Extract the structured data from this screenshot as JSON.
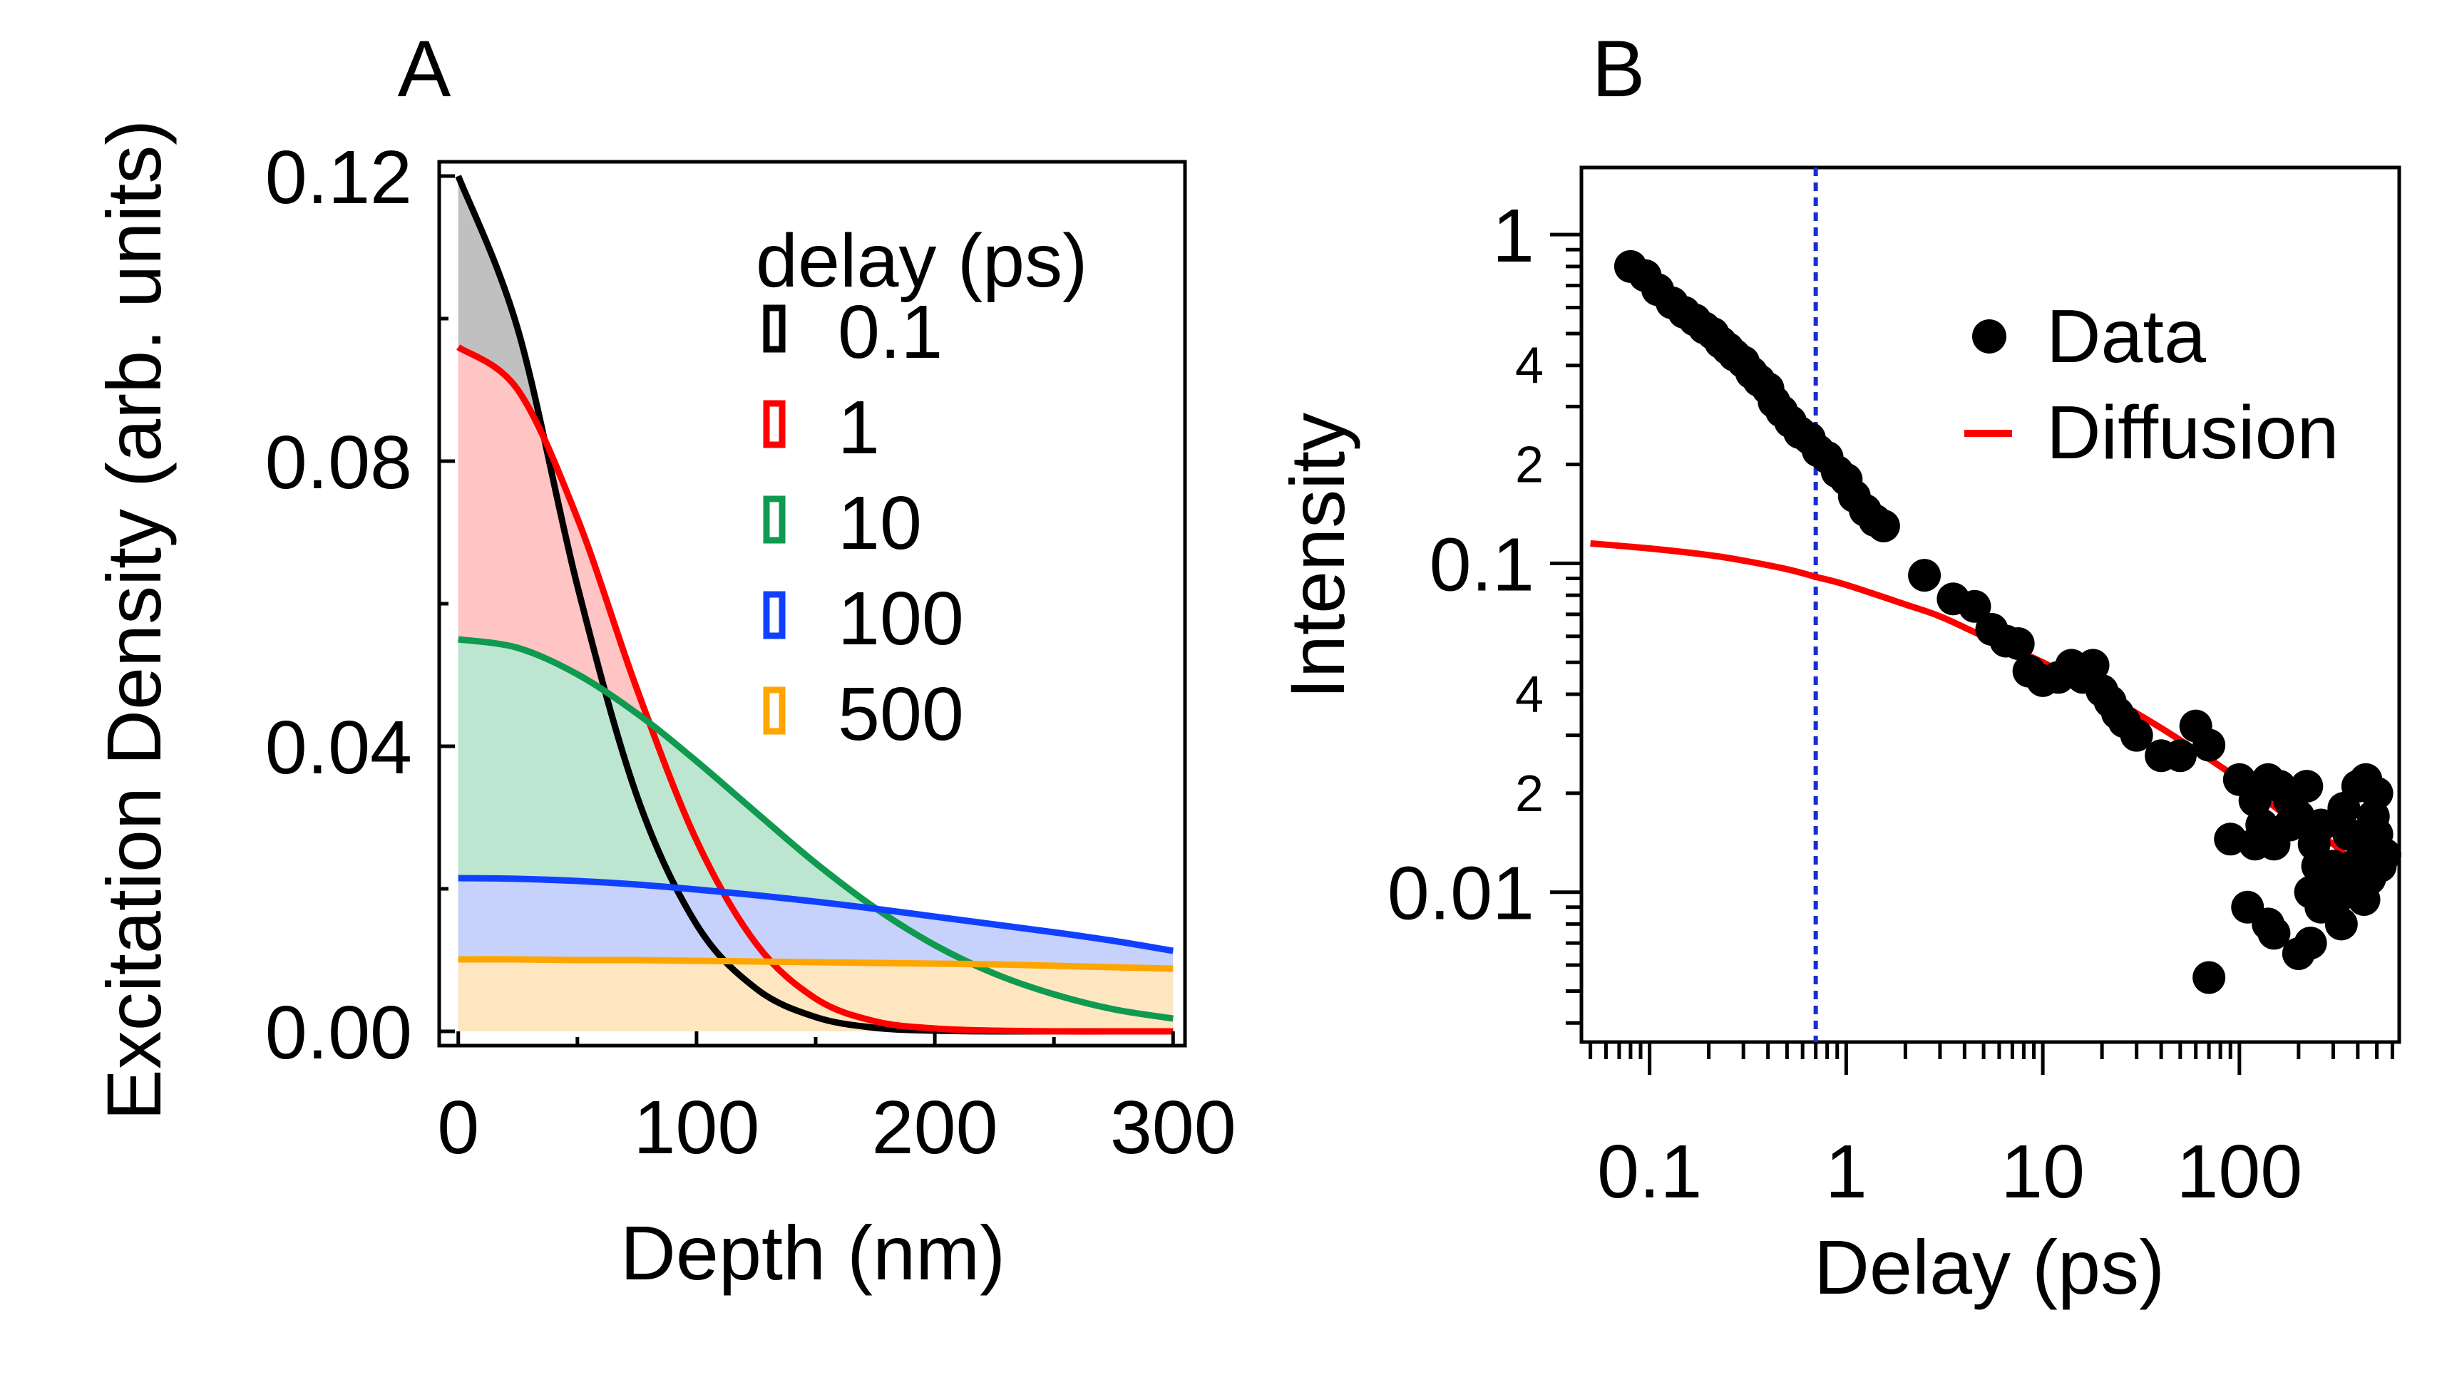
{
  "panels": {
    "a": {
      "label": "A"
    },
    "b": {
      "label": "B"
    }
  },
  "chart_data": [
    {
      "type": "area",
      "panel": "A",
      "xlabel": "Depth (nm)",
      "ylabel": "Excitation Density (arb. units)",
      "xlim": [
        -8,
        305
      ],
      "ylim": [
        -0.002,
        0.122
      ],
      "xticks": [
        0,
        100,
        200,
        300
      ],
      "xtick_labels": [
        "0",
        "100",
        "200",
        "300"
      ],
      "yticks": [
        0.0,
        0.04,
        0.08,
        0.12
      ],
      "ytick_labels": [
        "0.00",
        "0.04",
        "0.08",
        "0.12"
      ],
      "legend": {
        "title": "delay (ps)",
        "placement": "top-right"
      },
      "depth": [
        0,
        25,
        50,
        75,
        100,
        125,
        150,
        175,
        200,
        225,
        250,
        275,
        300
      ],
      "series": [
        {
          "name": "0.1",
          "color": "#000000",
          "fill": "#c0c0c0",
          "values": [
            0.12,
            0.0985,
            0.0625,
            0.033,
            0.015,
            0.006,
            0.002,
            0.0005,
            0.0001,
            0,
            0,
            0,
            0
          ]
        },
        {
          "name": "1",
          "color": "#ff0000",
          "fill": "#ffc4c4",
          "values": [
            0.096,
            0.09,
            0.072,
            0.048,
            0.0268,
            0.0123,
            0.0046,
            0.0014,
            0.0004,
            0.0001,
            0,
            0,
            0
          ]
        },
        {
          "name": "10",
          "color": "#109a50",
          "fill": "#bde6d1",
          "values": [
            0.055,
            0.0538,
            0.0501,
            0.0446,
            0.0379,
            0.0307,
            0.0236,
            0.0173,
            0.0121,
            0.0081,
            0.0052,
            0.0031,
            0.0018
          ]
        },
        {
          "name": "100",
          "color": "#1040ff",
          "fill": "#c6d2fb",
          "values": [
            0.0215,
            0.0214,
            0.0211,
            0.0206,
            0.0199,
            0.0191,
            0.0182,
            0.0172,
            0.0161,
            0.015,
            0.0139,
            0.0127,
            0.0113
          ]
        },
        {
          "name": "500",
          "color": "#ffa500",
          "fill": "#fde6c0",
          "values": [
            0.0101,
            0.0101,
            0.01,
            0.01,
            0.0099,
            0.0098,
            0.0097,
            0.0096,
            0.0095,
            0.0094,
            0.0092,
            0.009,
            0.0088
          ]
        }
      ]
    },
    {
      "type": "scatter",
      "panel": "B",
      "xscale": "log",
      "yscale": "log",
      "xlabel": "Delay (ps)",
      "ylabel": "Intensity",
      "xlim": [
        0.045,
        650
      ],
      "ylim": [
        0.0035,
        1.6
      ],
      "xticks": [
        0.1,
        1,
        10,
        100
      ],
      "xtick_labels": [
        "0.1",
        "1",
        "10",
        "100"
      ],
      "yticks": [
        0.01,
        0.1,
        1
      ],
      "ytick_labels": [
        "0.01",
        "0.1",
        "1"
      ],
      "yminor_labels": [
        {
          "value": 0.02,
          "label": "2"
        },
        {
          "value": 0.04,
          "label": "4"
        },
        {
          "value": 0.2,
          "label": "2"
        },
        {
          "value": 0.4,
          "label": "4"
        }
      ],
      "vline": {
        "x": 0.7,
        "color": "#1a2ecc",
        "style": "dotted"
      },
      "legend": {
        "placement": "top-right",
        "entries": [
          "Data",
          "Diffusion"
        ]
      },
      "series": [
        {
          "name": "Data",
          "kind": "markers",
          "color": "#000000",
          "points": [
            [
              0.08,
              0.8
            ],
            [
              0.095,
              0.75
            ],
            [
              0.11,
              0.68
            ],
            [
              0.13,
              0.62
            ],
            [
              0.15,
              0.58
            ],
            [
              0.17,
              0.55
            ],
            [
              0.19,
              0.52
            ],
            [
              0.21,
              0.5
            ],
            [
              0.23,
              0.47
            ],
            [
              0.25,
              0.45
            ],
            [
              0.27,
              0.43
            ],
            [
              0.3,
              0.41
            ],
            [
              0.33,
              0.38
            ],
            [
              0.36,
              0.36
            ],
            [
              0.4,
              0.34
            ],
            [
              0.43,
              0.31
            ],
            [
              0.47,
              0.29
            ],
            [
              0.52,
              0.27
            ],
            [
              0.58,
              0.25
            ],
            [
              0.65,
              0.24
            ],
            [
              0.72,
              0.22
            ],
            [
              0.8,
              0.21
            ],
            [
              0.9,
              0.19
            ],
            [
              1.0,
              0.18
            ],
            [
              1.1,
              0.16
            ],
            [
              1.25,
              0.145
            ],
            [
              1.4,
              0.135
            ],
            [
              1.55,
              0.13
            ],
            [
              2.5,
              0.092
            ],
            [
              3.5,
              0.078
            ],
            [
              4.5,
              0.074
            ],
            [
              5.5,
              0.063
            ],
            [
              6.5,
              0.058
            ],
            [
              7.5,
              0.057
            ],
            [
              8.5,
              0.047
            ],
            [
              10,
              0.044
            ],
            [
              12,
              0.045
            ],
            [
              14,
              0.049
            ],
            [
              16,
              0.045
            ],
            [
              18,
              0.049
            ],
            [
              20,
              0.041
            ],
            [
              22,
              0.038
            ],
            [
              24,
              0.035
            ],
            [
              26,
              0.033
            ],
            [
              30,
              0.03
            ],
            [
              40,
              0.026
            ],
            [
              50,
              0.026
            ],
            [
              60,
              0.032
            ],
            [
              70,
              0.028
            ],
            [
              100,
              0.022
            ],
            [
              120,
              0.019
            ],
            [
              130,
              0.016
            ],
            [
              140,
              0.022
            ],
            [
              160,
              0.021
            ],
            [
              180,
              0.019
            ],
            [
              200,
              0.017
            ],
            [
              220,
              0.021
            ],
            [
              240,
              0.014
            ],
            [
              250,
              0.012
            ],
            [
              260,
              0.016
            ],
            [
              280,
              0.011
            ],
            [
              300,
              0.009
            ],
            [
              320,
              0.01
            ],
            [
              340,
              0.018
            ],
            [
              360,
              0.015
            ],
            [
              380,
              0.012
            ],
            [
              400,
              0.01
            ],
            [
              420,
              0.014
            ],
            [
              440,
              0.022
            ],
            [
              460,
              0.011
            ],
            [
              480,
              0.017
            ],
            [
              500,
              0.02
            ],
            [
              520,
              0.012
            ],
            [
              550,
              0.013
            ],
            [
              400,
              0.021
            ],
            [
              150,
              0.0075
            ],
            [
              200,
              0.0065
            ],
            [
              230,
              0.007
            ],
            [
              260,
              0.009
            ],
            [
              300,
              0.012
            ],
            [
              120,
              0.014
            ],
            [
              150,
              0.014
            ],
            [
              180,
              0.016
            ],
            [
              230,
              0.01
            ],
            [
              330,
              0.008
            ],
            [
              380,
              0.01
            ],
            [
              440,
              0.012
            ],
            [
              90,
              0.0145
            ],
            [
              70,
              0.0055
            ],
            [
              110,
              0.009
            ],
            [
              140,
              0.008
            ],
            [
              430,
              0.0095
            ],
            [
              470,
              0.013
            ],
            [
              500,
              0.015
            ],
            [
              520,
              0.012
            ]
          ]
        },
        {
          "name": "Diffusion",
          "kind": "line",
          "color": "#ff0000",
          "points": [
            [
              0.05,
              0.115
            ],
            [
              0.1,
              0.111
            ],
            [
              0.2,
              0.106
            ],
            [
              0.3,
              0.102
            ],
            [
              0.5,
              0.096
            ],
            [
              0.7,
              0.091
            ],
            [
              1,
              0.086
            ],
            [
              2,
              0.075
            ],
            [
              3,
              0.069
            ],
            [
              5,
              0.06
            ],
            [
              10,
              0.05
            ],
            [
              20,
              0.04
            ],
            [
              30,
              0.035
            ],
            [
              50,
              0.029
            ],
            [
              100,
              0.022
            ],
            [
              200,
              0.016
            ],
            [
              300,
              0.014
            ],
            [
              450,
              0.011
            ]
          ]
        }
      ]
    }
  ]
}
